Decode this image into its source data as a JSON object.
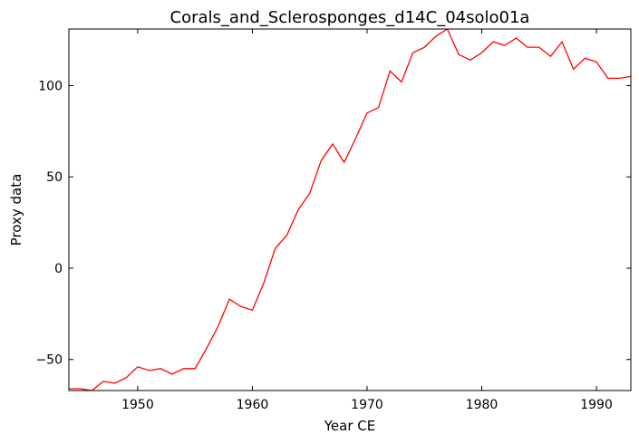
{
  "chart_data": {
    "type": "line",
    "title": "Corals_and_Sclerosponges_d14C_04solo01a",
    "xlabel": "Year CE",
    "ylabel": "Proxy data",
    "xlim": [
      1944,
      1993
    ],
    "ylim": [
      -67,
      131
    ],
    "xticks": [
      1950,
      1960,
      1970,
      1980,
      1990
    ],
    "yticks": [
      -50,
      0,
      50,
      100
    ],
    "ytick_labels": [
      "−50",
      "0",
      "50",
      "100"
    ],
    "grid": false,
    "line_color": "#ff0000",
    "series": [
      {
        "x": [
          1944,
          1945,
          1946,
          1947,
          1948,
          1949,
          1950,
          1951,
          1952,
          1953,
          1954,
          1955,
          1956,
          1957,
          1958,
          1959,
          1960,
          1961,
          1962,
          1963,
          1964,
          1965,
          1966,
          1967,
          1968,
          1969,
          1970,
          1971,
          1972,
          1973,
          1974,
          1975,
          1976,
          1977,
          1978,
          1979,
          1980,
          1981,
          1982,
          1983,
          1984,
          1985,
          1986,
          1987,
          1988,
          1989,
          1990,
          1991,
          1992,
          1993
        ],
        "values": [
          -66,
          -66,
          -67,
          -62,
          -63,
          -60,
          -54,
          -56,
          -55,
          -58,
          -55,
          -55,
          -44,
          -32,
          -17,
          -21,
          -23,
          -8,
          11,
          18,
          32,
          41,
          59,
          68,
          58,
          71,
          85,
          88,
          108,
          102,
          118,
          121,
          127,
          131,
          117,
          114,
          118,
          124,
          122,
          126,
          121,
          121,
          116,
          124,
          109,
          115,
          113,
          104,
          104,
          105
        ]
      }
    ]
  }
}
